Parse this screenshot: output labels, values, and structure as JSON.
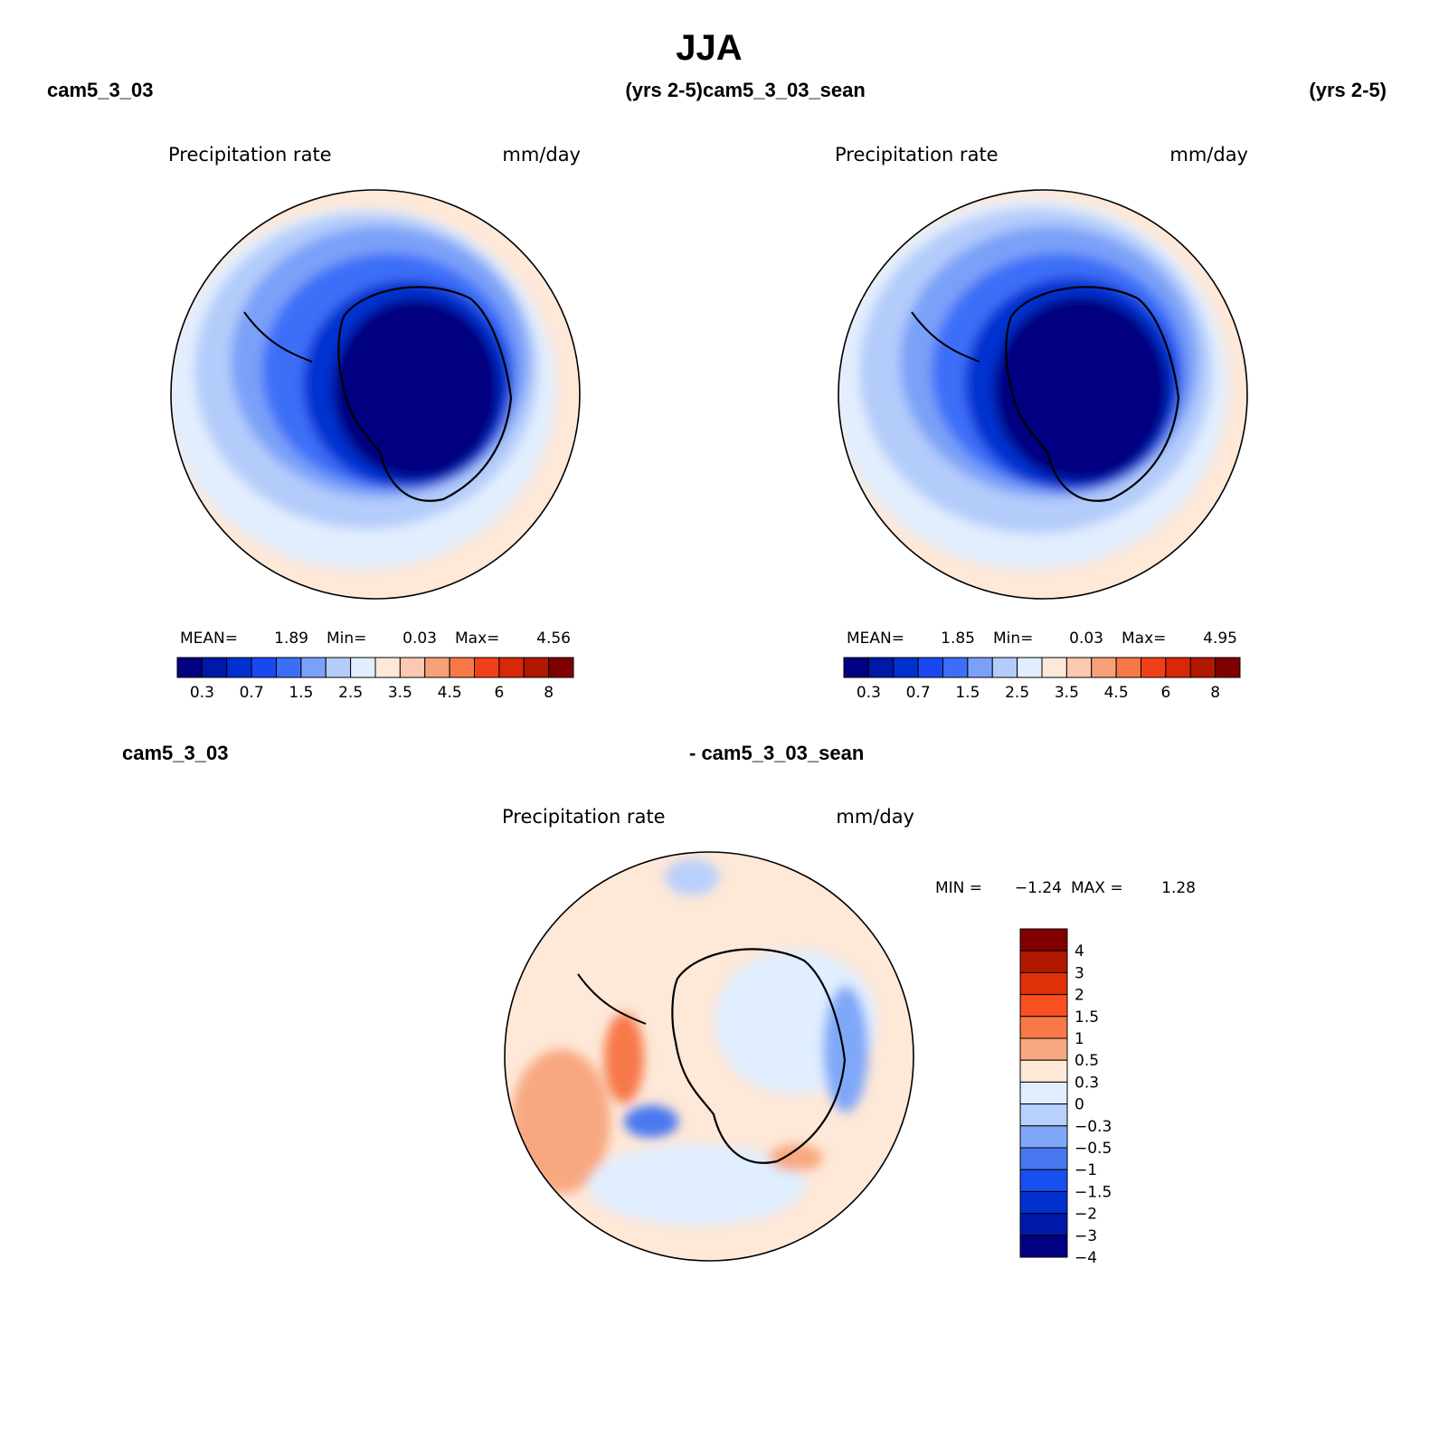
{
  "title": "JJA",
  "panels": [
    {
      "case_label": "cam5_3_03",
      "years_label": "(yrs 2-5)",
      "variable": "Precipitation rate",
      "units": "mm/day",
      "stats": {
        "mean_label": "MEAN=",
        "mean": "1.89",
        "min_label": "Min=",
        "min": "0.03",
        "max_label": "Max=",
        "max": "4.56"
      }
    },
    {
      "case_label": "cam5_3_03_sean",
      "years_label": "(yrs 2-5)",
      "variable": "Precipitation rate",
      "units": "mm/day",
      "stats": {
        "mean_label": "MEAN=",
        "mean": "1.85",
        "min_label": "Min=",
        "min": "0.03",
        "max_label": "Max=",
        "max": "4.95"
      }
    }
  ],
  "diff_panel": {
    "case_a_label": "cam5_3_03",
    "case_b_label": "- cam5_3_03_sean",
    "variable": "Precipitation rate",
    "units": "mm/day",
    "stats": {
      "min_label": "MIN =",
      "min": "−1.24",
      "max_label": "MAX =",
      "max": "1.28"
    }
  },
  "colorbar_main": {
    "colors": [
      "#000080",
      "#0018a8",
      "#0030d0",
      "#1a48f0",
      "#3c6ef8",
      "#7aa0f8",
      "#b4ccfa",
      "#e2eefe",
      "#fee8d8",
      "#fcc8b0",
      "#f8a078",
      "#f87848",
      "#f04018",
      "#d82808",
      "#b01800",
      "#800000"
    ],
    "tick_labels": [
      "0.3",
      "0.7",
      "1.5",
      "2.5",
      "3.5",
      "4.5",
      "6",
      "8"
    ]
  },
  "colorbar_diff": {
    "colors": [
      "#800000",
      "#b01800",
      "#e03008",
      "#f85020",
      "#f87848",
      "#f8a880",
      "#fee8d8",
      "#e0eeff",
      "#b8d0fc",
      "#80a8f8",
      "#4878f0",
      "#1850f0",
      "#0030d0",
      "#0018a8",
      "#000080"
    ],
    "tick_labels": [
      "4",
      "3",
      "2",
      "1.5",
      "1",
      "0.5",
      "0.3",
      "0",
      "−0.3",
      "−0.5",
      "−1",
      "−1.5",
      "−2",
      "−3",
      "−4"
    ]
  }
}
